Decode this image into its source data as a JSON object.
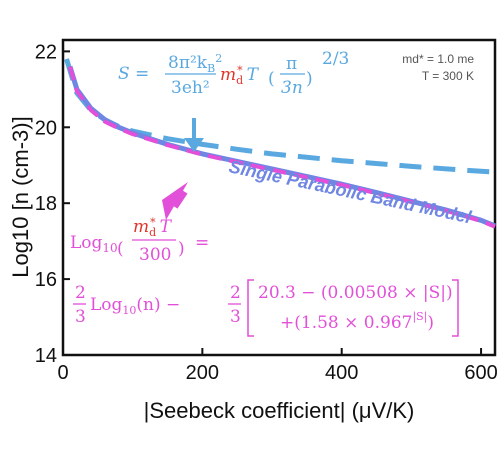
{
  "chart_data": {
    "type": "line",
    "xlabel": "|Seebeck coefficient| (μV/K)",
    "ylabel": "Log10 [n (cm-3)]",
    "xlim": [
      0,
      620
    ],
    "ylim": [
      14,
      22.3
    ],
    "x_ticks": [
      "0",
      "200",
      "400",
      "600"
    ],
    "y_ticks": [
      "14",
      "16",
      "18",
      "20",
      "22"
    ],
    "x_tick_values": [
      0,
      200,
      400,
      600
    ],
    "y_tick_values": [
      14,
      16,
      18,
      20,
      22
    ],
    "series": [
      {
        "name": "Single Parabolic Band Model",
        "color": "#6f86e3",
        "style": "solid",
        "x": [
          10,
          20,
          40,
          60,
          80,
          100,
          150,
          200,
          250,
          300,
          350,
          400,
          450,
          500,
          550,
          600,
          620
        ],
        "y": [
          21.6,
          21.0,
          20.5,
          20.2,
          20.0,
          19.85,
          19.55,
          19.3,
          19.1,
          18.9,
          18.7,
          18.5,
          18.28,
          18.05,
          17.82,
          17.55,
          17.4
        ]
      },
      {
        "name": "Log10(md*T/300) fit",
        "color": "#e24fd8",
        "style": "dashed",
        "x": [
          10,
          20,
          40,
          60,
          80,
          100,
          150,
          200,
          250,
          300,
          350,
          400,
          450,
          500,
          550,
          600,
          620
        ],
        "y": [
          21.6,
          20.95,
          20.45,
          20.15,
          19.97,
          19.82,
          19.53,
          19.28,
          19.08,
          18.88,
          18.68,
          18.48,
          18.26,
          18.03,
          17.8,
          17.53,
          17.38
        ]
      },
      {
        "name": "S = 8π²kB²/(3eh²) md* T (π/3n)^(2/3)",
        "color": "#5aa8e0",
        "style": "dashed",
        "x": [
          5,
          10,
          20,
          40,
          60,
          80,
          100,
          150,
          200,
          250,
          300,
          400,
          500,
          600,
          620
        ],
        "y": [
          21.8,
          21.5,
          20.9,
          20.45,
          20.2,
          20.02,
          19.9,
          19.7,
          19.55,
          19.42,
          19.3,
          19.12,
          18.97,
          18.84,
          18.82
        ]
      }
    ],
    "annotations": {
      "params_line1": "md* = 1.0 me",
      "params_line2": "T = 300 K",
      "spb_label": "Single Parabolic Band Model"
    }
  },
  "equations": {
    "seebeck": {
      "lhs": "S =",
      "num": "8π²k",
      "num_sub": "B",
      "num_sup": "2",
      "den": "3eh²",
      "mass": "m",
      "mass_sub": "d",
      "mass_sup": "*",
      "temp": "T",
      "paren_num": "π",
      "paren_den": "3n",
      "exponent": "2/3"
    },
    "fit": {
      "log": "Log",
      "log_sub": "10",
      "frac_num": "m",
      "frac_num_sub": "d",
      "frac_num_sup": "*",
      "frac_num_T": "T",
      "frac_den": "300",
      "equals": "=",
      "two": "2",
      "three": "3",
      "log_n": "Log",
      "log_n_sub": "10",
      "log_n_arg": "(n) −",
      "minus": "−",
      "bracket1": "20.3 − (0.00508 × |S|)",
      "bracket2": "+(1.58 × 0.967",
      "bracket2_sup": "|S|",
      "bracket2_end": ")"
    },
    "colors": {
      "blue": "#5aa8e0",
      "pink": "#e24fd8",
      "red": "#e0342a",
      "spb": "#6f86e3",
      "arrow_blue": "#5aa8e0",
      "arrow_pink": "#e24fd8"
    }
  }
}
